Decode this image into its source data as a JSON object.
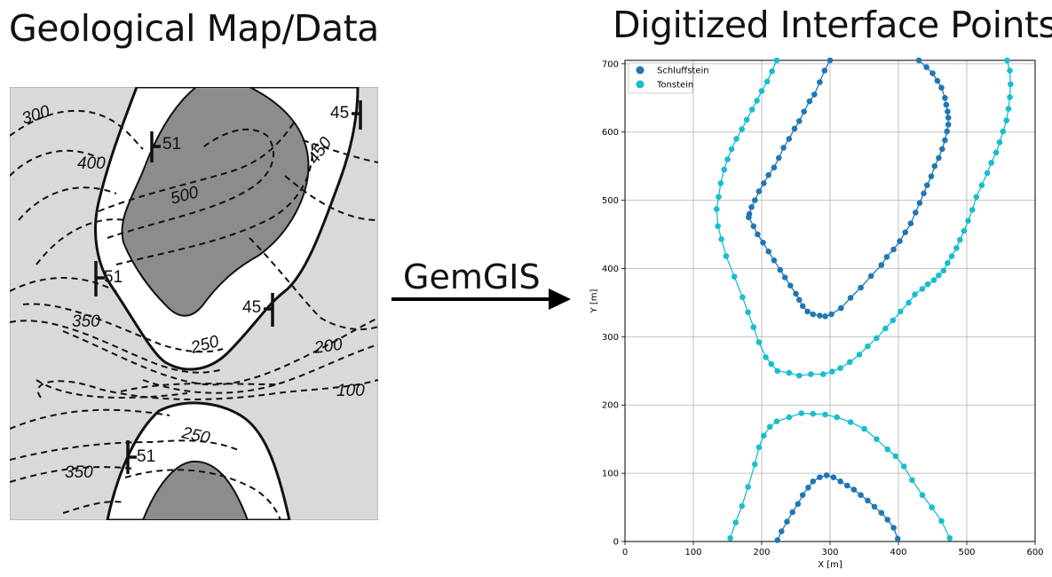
{
  "left_panel": {
    "title": "Geological Map/Data",
    "contour_labels": [
      "300",
      "400",
      "500",
      "450",
      "350",
      "250",
      "200",
      "100",
      "250",
      "350"
    ],
    "strike_labels": [
      "51",
      "45",
      "51",
      "45",
      "51"
    ]
  },
  "arrow": {
    "label": "GemGIS"
  },
  "right_panel": {
    "title": "Digitized Interface Points",
    "chart_data": {
      "type": "scatter",
      "xlabel": "X [m]",
      "ylabel": "Y [m]",
      "xlim": [
        0,
        600
      ],
      "ylim": [
        0,
        705
      ],
      "xticks": [
        "0",
        "100",
        "200",
        "300",
        "400",
        "500",
        "600"
      ],
      "yticks": [
        "0",
        "100",
        "200",
        "300",
        "400",
        "500",
        "600",
        "700"
      ],
      "grid": true,
      "legend_position": "top-left",
      "series": [
        {
          "name": "Schluffstein",
          "color": "#1f77b4",
          "lines": [
            [
              [
                300,
                705
              ],
              [
                292,
                690
              ],
              [
                285,
                673
              ],
              [
                277,
                655
              ],
              [
                270,
                645
              ],
              [
                262,
                630
              ],
              [
                255,
                616
              ],
              [
                248,
                605
              ],
              [
                240,
                590
              ],
              [
                232,
                577
              ],
              [
                225,
                562
              ],
              [
                218,
                548
              ],
              [
                210,
                537
              ],
              [
                203,
                525
              ],
              [
                196,
                513
              ],
              [
                190,
                500
              ],
              [
                185,
                490
              ],
              [
                182,
                480
              ],
              [
                181,
                475
              ],
              [
                188,
                462
              ],
              [
                194,
                450
              ],
              [
                202,
                438
              ],
              [
                210,
                425
              ],
              [
                218,
                412
              ],
              [
                227,
                398
              ],
              [
                234,
                387
              ],
              [
                242,
                375
              ],
              [
                250,
                363
              ],
              [
                255,
                354
              ],
              [
                260,
                345
              ],
              [
                267,
                337
              ],
              [
                275,
                333
              ],
              [
                285,
                331
              ],
              [
                293,
                330
              ],
              [
                302,
                333
              ],
              [
                316,
                342
              ],
              [
                330,
                357
              ],
              [
                345,
                372
              ],
              [
                360,
                389
              ],
              [
                375,
                405
              ],
              [
                383,
                417
              ],
              [
                393,
                428
              ],
              [
                402,
                440
              ],
              [
                410,
                453
              ],
              [
                418,
                466
              ],
              [
                425,
                482
              ],
              [
                431,
                496
              ],
              [
                437,
                510
              ],
              [
                442,
                522
              ],
              [
                448,
                535
              ],
              [
                453,
                550
              ],
              [
                459,
                562
              ],
              [
                464,
                575
              ],
              [
                468,
                588
              ],
              [
                471,
                601
              ],
              [
                473,
                611
              ],
              [
                473,
                621
              ],
              [
                472,
                630
              ],
              [
                470,
                640
              ],
              [
                468,
                650
              ],
              [
                463,
                665
              ],
              [
                457,
                675
              ],
              [
                450,
                686
              ],
              [
                441,
                695
              ],
              [
                430,
                705
              ]
            ],
            [
              [
                223,
                2
              ],
              [
                229,
                15
              ],
              [
                237,
                29
              ],
              [
                245,
                43
              ],
              [
                253,
                55
              ],
              [
                260,
                68
              ],
              [
                268,
                79
              ],
              [
                275,
                88
              ],
              [
                285,
                94
              ],
              [
                295,
                97
              ],
              [
                305,
                94
              ],
              [
                315,
                88
              ],
              [
                325,
                82
              ],
              [
                335,
                76
              ],
              [
                345,
                68
              ],
              [
                355,
                60
              ],
              [
                365,
                51
              ],
              [
                375,
                42
              ],
              [
                384,
                32
              ],
              [
                393,
                20
              ],
              [
                399,
                4
              ]
            ]
          ]
        },
        {
          "name": "Tonstein",
          "color": "#17becf",
          "lines": [
            [
              [
                222,
                705
              ],
              [
                215,
                689
              ],
              [
                208,
                674
              ],
              [
                200,
                660
              ],
              [
                193,
                646
              ],
              [
                186,
                633
              ],
              [
                178,
                618
              ],
              [
                171,
                604
              ],
              [
                163,
                590
              ],
              [
                156,
                575
              ],
              [
                150,
                560
              ],
              [
                145,
                545
              ],
              [
                140,
                525
              ],
              [
                137,
                505
              ],
              [
                134,
                487
              ],
              [
                136,
                462
              ],
              [
                141,
                443
              ],
              [
                148,
                418
              ],
              [
                160,
                388
              ],
              [
                172,
                358
              ],
              [
                180,
                336
              ],
              [
                188,
                314
              ],
              [
                196,
                292
              ],
              [
                206,
                270
              ],
              [
                214,
                260
              ],
              [
                223,
                250
              ],
              [
                240,
                247
              ],
              [
                255,
                243
              ],
              [
                272,
                245
              ],
              [
                290,
                245
              ],
              [
                303,
                249
              ],
              [
                315,
                254
              ],
              [
                329,
                263
              ],
              [
                343,
                274
              ],
              [
                355,
                286
              ],
              [
                368,
                298
              ],
              [
                381,
                312
              ],
              [
                392,
                324
              ],
              [
                403,
                337
              ],
              [
                415,
                350
              ],
              [
                424,
                362
              ],
              [
                435,
                370
              ],
              [
                443,
                377
              ],
              [
                452,
                383
              ],
              [
                459,
                390
              ],
              [
                466,
                397
              ],
              [
                472,
                408
              ],
              [
                478,
                418
              ],
              [
                485,
                430
              ],
              [
                490,
                442
              ],
              [
                496,
                455
              ],
              [
                502,
                470
              ],
              [
                508,
                486
              ],
              [
                514,
                505
              ],
              [
                522,
                522
              ],
              [
                530,
                540
              ],
              [
                536,
                555
              ],
              [
                543,
                570
              ],
              [
                548,
                585
              ],
              [
                553,
                601
              ],
              [
                558,
                617
              ],
              [
                561,
                634
              ],
              [
                563,
                651
              ],
              [
                564,
                670
              ],
              [
                563,
                690
              ],
              [
                559,
                705
              ]
            ],
            [
              [
                154,
                5
              ],
              [
                162,
                28
              ],
              [
                171,
                52
              ],
              [
                180,
                80
              ],
              [
                190,
                113
              ],
              [
                196,
                138
              ],
              [
                203,
                155
              ],
              [
                212,
                168
              ],
              [
                222,
                176
              ],
              [
                240,
                182
              ],
              [
                258,
                188
              ],
              [
                275,
                187
              ],
              [
                293,
                186
              ],
              [
                310,
                182
              ],
              [
                330,
                175
              ],
              [
                350,
                165
              ],
              [
                368,
                150
              ],
              [
                384,
                135
              ],
              [
                396,
                125
              ],
              [
                408,
                110
              ],
              [
                420,
                90
              ],
              [
                435,
                68
              ],
              [
                449,
                50
              ],
              [
                463,
                30
              ],
              [
                475,
                5
              ]
            ]
          ]
        }
      ]
    }
  }
}
